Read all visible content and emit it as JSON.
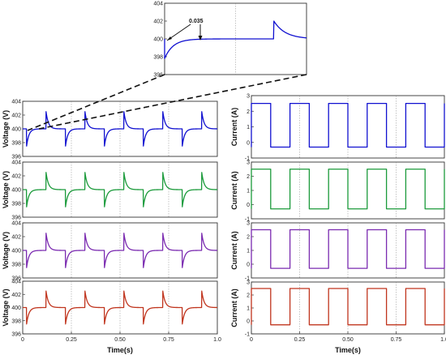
{
  "chart_data": [
    {
      "id": "inset",
      "type": "line",
      "ylim": [
        396,
        404
      ],
      "yticks": [
        "404",
        "402",
        "400",
        "398",
        "396"
      ],
      "annotation": "0.035",
      "series": [
        {
          "color": "#1010d0",
          "kind": "voltage_zoom"
        }
      ]
    },
    {
      "id": "v1",
      "type": "line",
      "ylabel": "Voltage (V)",
      "xlim": [
        0,
        1
      ],
      "ylim": [
        396,
        404
      ],
      "yticks": [
        "404",
        "402",
        "400",
        "398",
        "396"
      ],
      "series": [
        {
          "color": "#1010d0",
          "kind": "voltage",
          "nominal": 400,
          "spike": 2.5
        }
      ]
    },
    {
      "id": "v2",
      "type": "line",
      "ylabel": "Voltage (V)",
      "xlim": [
        0,
        1
      ],
      "ylim": [
        396,
        404
      ],
      "yticks": [
        "404",
        "402",
        "400",
        "398",
        "396"
      ],
      "series": [
        {
          "color": "#1a9a3a",
          "kind": "voltage",
          "nominal": 400,
          "spike": 2.5
        }
      ]
    },
    {
      "id": "v3",
      "type": "line",
      "ylabel": "Voltage (V)",
      "xlim": [
        0,
        1
      ],
      "ylim": [
        396,
        404
      ],
      "yticks": [
        "404",
        "402",
        "400",
        "398",
        "396"
      ],
      "series": [
        {
          "color": "#7a2ab0",
          "kind": "voltage",
          "nominal": 400,
          "spike": 2.5
        }
      ]
    },
    {
      "id": "v4",
      "type": "line",
      "ylabel": "Voltage (V)",
      "xlabel": "Time(s)",
      "xlim": [
        0,
        1
      ],
      "ylim": [
        396,
        404
      ],
      "yticks": [
        "404",
        "402",
        "400",
        "398",
        "396"
      ],
      "xticks": [
        "0",
        "0.25",
        "0.50",
        "0.75",
        "1.0"
      ],
      "series": [
        {
          "color": "#c0341d",
          "kind": "voltage",
          "nominal": 400,
          "spike": 2.5
        }
      ]
    },
    {
      "id": "c1",
      "type": "line",
      "ylabel": "Current (A)",
      "xlim": [
        0,
        1
      ],
      "ylim": [
        -1,
        3
      ],
      "yticks": [
        "3",
        "2",
        "1",
        "0",
        "-1"
      ],
      "series": [
        {
          "color": "#1010d0",
          "kind": "square",
          "high": 2.5,
          "low": -0.3,
          "period": 0.2,
          "duty": 0.5
        }
      ]
    },
    {
      "id": "c2",
      "type": "line",
      "ylabel": "Current (A)",
      "xlim": [
        0,
        1
      ],
      "ylim": [
        -1,
        3
      ],
      "yticks": [
        "3",
        "2",
        "1",
        "0",
        "-1"
      ],
      "series": [
        {
          "color": "#1a9a3a",
          "kind": "square",
          "high": 2.5,
          "low": -0.3,
          "period": 0.2,
          "duty": 0.5
        }
      ]
    },
    {
      "id": "c3",
      "type": "line",
      "ylabel": "Current (A)",
      "xlim": [
        0,
        1
      ],
      "ylim": [
        -1,
        3
      ],
      "yticks": [
        "3",
        "2",
        "1",
        "0",
        "-1"
      ],
      "series": [
        {
          "color": "#7a2ab0",
          "kind": "square",
          "high": 2.5,
          "low": -0.3,
          "period": 0.2,
          "duty": 0.5
        }
      ]
    },
    {
      "id": "c4",
      "type": "line",
      "ylabel": "Current (A)",
      "xlabel": "Time(s)",
      "xlim": [
        0,
        1
      ],
      "ylim": [
        -1,
        3
      ],
      "yticks": [
        "3",
        "2",
        "1",
        "0",
        "-1"
      ],
      "xticks": [
        "0",
        "0.25",
        "0.50",
        "0.75",
        "1.0"
      ],
      "series": [
        {
          "color": "#c0341d",
          "kind": "square",
          "high": 2.5,
          "low": -0.3,
          "period": 0.2,
          "duty": 0.5
        }
      ]
    }
  ]
}
